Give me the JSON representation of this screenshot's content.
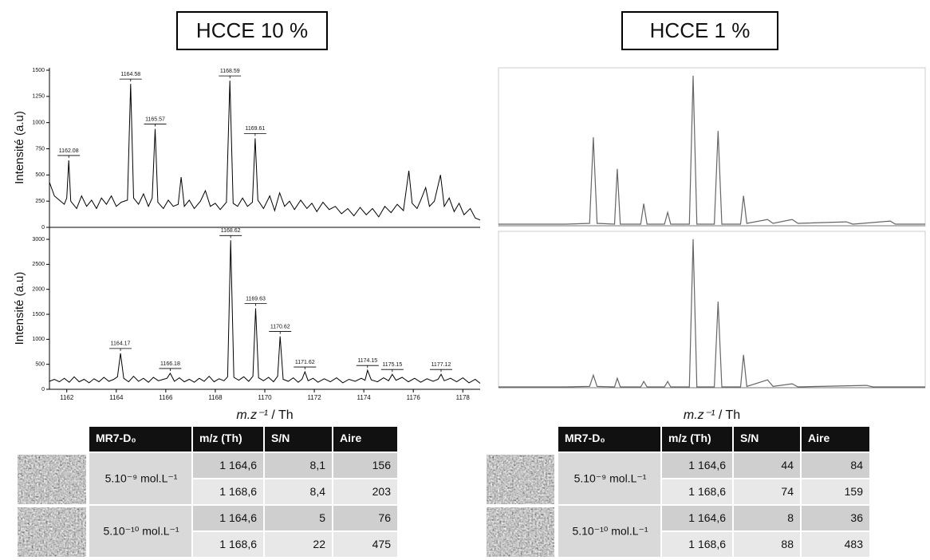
{
  "panels": [
    {
      "title": "HCCE 10 %",
      "x_label": {
        "italic": "m.z⁻¹",
        "rest": " / Th"
      },
      "xlim": [
        1161.3,
        1178.7
      ],
      "xticks": [
        1162,
        1164,
        1166,
        1168,
        1170,
        1172,
        1174,
        1176,
        1178
      ],
      "spectra": [
        {
          "type": "line",
          "y_label": "Intensité (a.u)",
          "ylim": [
            0,
            1523
          ],
          "yticks": [
            0,
            250,
            500,
            750,
            1000,
            1250,
            1500
          ],
          "x": [
            1161.3,
            1161.5,
            1161.7,
            1161.9,
            1162.0,
            1162.08,
            1162.16,
            1162.4,
            1162.6,
            1162.8,
            1163.0,
            1163.2,
            1163.4,
            1163.6,
            1163.8,
            1164.0,
            1164.2,
            1164.45,
            1164.58,
            1164.7,
            1164.9,
            1165.1,
            1165.3,
            1165.45,
            1165.57,
            1165.68,
            1165.9,
            1166.1,
            1166.3,
            1166.5,
            1166.62,
            1166.75,
            1166.95,
            1167.15,
            1167.4,
            1167.6,
            1167.8,
            1168.0,
            1168.2,
            1168.45,
            1168.59,
            1168.72,
            1168.9,
            1169.1,
            1169.3,
            1169.5,
            1169.61,
            1169.72,
            1169.95,
            1170.2,
            1170.4,
            1170.6,
            1170.8,
            1171.0,
            1171.2,
            1171.45,
            1171.7,
            1171.9,
            1172.1,
            1172.35,
            1172.6,
            1172.85,
            1173.1,
            1173.35,
            1173.6,
            1173.85,
            1174.1,
            1174.35,
            1174.6,
            1174.85,
            1175.1,
            1175.35,
            1175.6,
            1175.82,
            1175.95,
            1176.15,
            1176.3,
            1176.5,
            1176.65,
            1176.85,
            1177.1,
            1177.25,
            1177.45,
            1177.65,
            1177.85,
            1178.05,
            1178.3,
            1178.5,
            1178.7
          ],
          "values": [
            430,
            300,
            260,
            220,
            280,
            640,
            250,
            180,
            300,
            200,
            260,
            180,
            280,
            220,
            300,
            200,
            240,
            260,
            1370,
            280,
            220,
            320,
            200,
            280,
            940,
            240,
            180,
            260,
            200,
            220,
            480,
            200,
            260,
            180,
            250,
            350,
            200,
            230,
            170,
            240,
            1400,
            230,
            200,
            280,
            200,
            240,
            850,
            260,
            180,
            300,
            160,
            330,
            200,
            250,
            170,
            260,
            180,
            230,
            150,
            240,
            170,
            200,
            130,
            180,
            110,
            190,
            120,
            180,
            100,
            200,
            140,
            220,
            160,
            540,
            230,
            180,
            260,
            380,
            200,
            250,
            500,
            200,
            280,
            150,
            230,
            120,
            180,
            90,
            70
          ],
          "peaks": [
            {
              "x": 1162.08,
              "y": 640
            },
            {
              "x": 1164.58,
              "y": 1370
            },
            {
              "x": 1165.57,
              "y": 940
            },
            {
              "x": 1168.59,
              "y": 1400
            },
            {
              "x": 1169.61,
              "y": 850
            }
          ]
        },
        {
          "type": "line",
          "y_label": "Intensité (a.u)",
          "ylim": [
            0,
            3240
          ],
          "yticks": [
            0,
            500,
            1000,
            1500,
            2000,
            2500,
            3000
          ],
          "x": [
            1161.3,
            1161.5,
            1161.7,
            1161.9,
            1162.1,
            1162.3,
            1162.5,
            1162.7,
            1162.9,
            1163.1,
            1163.3,
            1163.5,
            1163.7,
            1163.9,
            1164.05,
            1164.17,
            1164.3,
            1164.5,
            1164.7,
            1164.9,
            1165.1,
            1165.3,
            1165.5,
            1165.7,
            1165.9,
            1166.05,
            1166.18,
            1166.35,
            1166.55,
            1166.75,
            1166.95,
            1167.15,
            1167.35,
            1167.55,
            1167.75,
            1167.95,
            1168.15,
            1168.35,
            1168.5,
            1168.62,
            1168.75,
            1168.95,
            1169.15,
            1169.35,
            1169.52,
            1169.63,
            1169.75,
            1169.95,
            1170.15,
            1170.35,
            1170.52,
            1170.62,
            1170.74,
            1170.95,
            1171.15,
            1171.35,
            1171.5,
            1171.62,
            1171.75,
            1171.95,
            1172.15,
            1172.4,
            1172.65,
            1172.9,
            1173.15,
            1173.4,
            1173.65,
            1173.9,
            1174.05,
            1174.15,
            1174.3,
            1174.55,
            1174.8,
            1175.0,
            1175.15,
            1175.3,
            1175.55,
            1175.8,
            1176.05,
            1176.3,
            1176.55,
            1176.8,
            1177.0,
            1177.12,
            1177.25,
            1177.5,
            1177.75,
            1178.0,
            1178.25,
            1178.5,
            1178.7
          ],
          "values": [
            160,
            200,
            150,
            220,
            140,
            250,
            150,
            200,
            130,
            210,
            150,
            240,
            160,
            200,
            250,
            720,
            220,
            150,
            260,
            160,
            220,
            140,
            240,
            170,
            200,
            220,
            320,
            160,
            230,
            150,
            200,
            140,
            220,
            160,
            260,
            150,
            210,
            170,
            250,
            2980,
            240,
            180,
            250,
            160,
            260,
            1620,
            230,
            170,
            240,
            150,
            260,
            1060,
            200,
            160,
            230,
            140,
            200,
            350,
            170,
            220,
            140,
            210,
            150,
            230,
            130,
            200,
            160,
            220,
            180,
            380,
            190,
            150,
            230,
            170,
            300,
            180,
            240,
            150,
            220,
            140,
            210,
            160,
            200,
            300,
            170,
            220,
            150,
            230,
            130,
            200,
            120
          ],
          "peaks": [
            {
              "x": 1164.17,
              "y": 720
            },
            {
              "x": 1166.18,
              "y": 320
            },
            {
              "x": 1168.62,
              "y": 2980
            },
            {
              "x": 1169.63,
              "y": 1620
            },
            {
              "x": 1170.62,
              "y": 1060
            },
            {
              "x": 1171.62,
              "y": 350
            },
            {
              "x": 1174.15,
              "y": 380
            },
            {
              "x": 1175.15,
              "y": 300
            },
            {
              "x": 1177.12,
              "y": 300
            }
          ]
        }
      ],
      "table": {
        "header": [
          "MR7-D₀",
          "m/z  (Th)",
          "S/N",
          "Aire"
        ],
        "rows": [
          {
            "concentration": "5.10⁻⁹ mol.L⁻¹",
            "entries": [
              [
                "1 164,6",
                "8,1",
                "156"
              ],
              [
                "1 168,6",
                "8,4",
                "203"
              ]
            ]
          },
          {
            "concentration": "5.10⁻¹⁰ mol.L⁻¹",
            "entries": [
              [
                "1 164,6",
                "5",
                "76"
              ],
              [
                "1 168,6",
                "22",
                "475"
              ]
            ]
          }
        ]
      }
    },
    {
      "title": "HCCE 1 %",
      "x_label": {
        "italic": "m.z⁻¹",
        "rest": " / Th"
      },
      "xlim": [
        1160.8,
        1177.9
      ],
      "spectra": [
        {
          "type": "line",
          "ylim": [
            0,
            1000
          ],
          "x": [
            1160.8,
            1163.5,
            1164.45,
            1164.6,
            1164.75,
            1165.45,
            1165.56,
            1165.68,
            1166.5,
            1166.62,
            1166.75,
            1167.45,
            1167.58,
            1167.7,
            1168.45,
            1168.6,
            1168.75,
            1169.45,
            1169.6,
            1169.75,
            1170.5,
            1170.62,
            1170.75,
            1171.58,
            1171.8,
            1172.57,
            1172.8,
            1174.74,
            1175.0,
            1176.5,
            1176.7,
            1177.9
          ],
          "values": [
            10,
            10,
            15,
            560,
            15,
            10,
            360,
            10,
            10,
            140,
            10,
            10,
            85,
            10,
            10,
            950,
            10,
            10,
            600,
            10,
            10,
            190,
            15,
            40,
            15,
            40,
            15,
            25,
            10,
            30,
            10,
            10
          ]
        },
        {
          "type": "line",
          "ylim": [
            0,
            1000
          ],
          "x": [
            1160.8,
            1163.5,
            1164.45,
            1164.6,
            1164.75,
            1165.45,
            1165.56,
            1165.68,
            1166.5,
            1166.62,
            1166.75,
            1167.45,
            1167.58,
            1167.7,
            1168.45,
            1168.6,
            1168.75,
            1169.45,
            1169.6,
            1169.75,
            1170.5,
            1170.62,
            1170.75,
            1171.58,
            1171.8,
            1172.57,
            1172.8,
            1175.54,
            1175.8,
            1177.9
          ],
          "values": [
            5,
            5,
            8,
            80,
            8,
            5,
            60,
            5,
            5,
            40,
            5,
            5,
            40,
            5,
            5,
            950,
            5,
            5,
            550,
            5,
            5,
            210,
            8,
            50,
            8,
            25,
            5,
            15,
            5,
            5
          ]
        }
      ],
      "table": {
        "header": [
          "MR7-D₀",
          "m/z  (Th)",
          "S/N",
          "Aire"
        ],
        "rows": [
          {
            "concentration": "5.10⁻⁹ mol.L⁻¹",
            "entries": [
              [
                "1 164,6",
                "44",
                "84"
              ],
              [
                "1 168,6",
                "74",
                "159"
              ]
            ]
          },
          {
            "concentration": "5.10⁻¹⁰ mol.L⁻¹",
            "entries": [
              [
                "1 164,6",
                "8",
                "36"
              ],
              [
                "1 168,6",
                "88",
                "483"
              ]
            ]
          }
        ]
      }
    }
  ]
}
